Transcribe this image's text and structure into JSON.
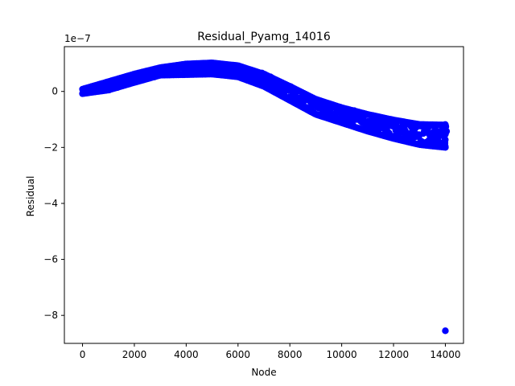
{
  "chart_data": {
    "type": "scatter",
    "title": "Residual_Pyamg_14016",
    "xlabel": "Node",
    "ylabel": "Residual",
    "y_offset_label": "1e−7",
    "y_scale": 1e-07,
    "xlim": [
      -700,
      14700
    ],
    "ylim": [
      -9.0,
      1.6
    ],
    "x_ticks": [
      0,
      2000,
      4000,
      6000,
      8000,
      10000,
      12000,
      14000
    ],
    "x_tick_labels": [
      "0",
      "2000",
      "4000",
      "6000",
      "8000",
      "10000",
      "12000",
      "14000"
    ],
    "y_ticks": [
      -8,
      -6,
      -4,
      -2,
      0
    ],
    "y_tick_labels": [
      "−8",
      "−6",
      "−4",
      "−2",
      "0"
    ],
    "grid": false,
    "marker_color": "#0000ff",
    "band": {
      "description_x": [
        0,
        1000,
        2000,
        3000,
        4000,
        5000,
        6000,
        7000,
        8000,
        9000,
        10000,
        11000,
        12000,
        13000,
        14000
      ],
      "y_upper": [
        0.08,
        0.35,
        0.62,
        0.85,
        0.98,
        1.02,
        0.92,
        0.62,
        0.18,
        -0.28,
        -0.58,
        -0.82,
        -1.02,
        -1.18,
        -1.2
      ],
      "y_lower": [
        -0.08,
        0.05,
        0.32,
        0.58,
        0.6,
        0.62,
        0.52,
        0.18,
        -0.32,
        -0.82,
        -1.12,
        -1.42,
        -1.68,
        -1.9,
        -2.0
      ]
    },
    "outlier": {
      "x": 14000,
      "y": -8.55
    }
  }
}
